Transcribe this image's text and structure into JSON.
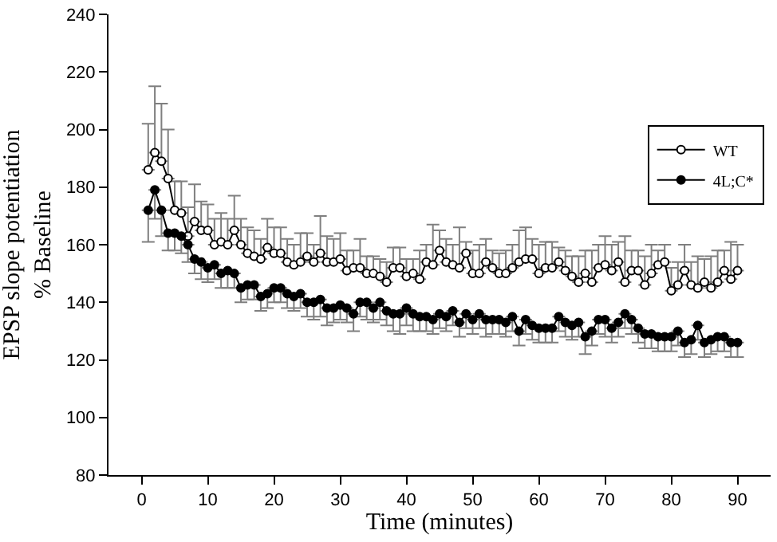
{
  "chart_data": {
    "type": "line",
    "xlabel": "Time (minutes)",
    "ylabel": "EPSP slope potentiation\n% Baseline",
    "xlim": [
      -5,
      95
    ],
    "ylim": [
      80,
      240
    ],
    "xticks": [
      0,
      10,
      20,
      30,
      40,
      50,
      60,
      70,
      80,
      90
    ],
    "yticks": [
      80,
      100,
      120,
      140,
      160,
      180,
      200,
      220,
      240
    ],
    "legend": "top right",
    "marker": "circle",
    "line_style": "solid",
    "x": [
      1,
      2,
      3,
      4,
      5,
      6,
      7,
      8,
      9,
      10,
      11,
      12,
      13,
      14,
      15,
      16,
      17,
      18,
      19,
      20,
      21,
      22,
      23,
      24,
      25,
      26,
      27,
      28,
      29,
      30,
      31,
      32,
      33,
      34,
      35,
      36,
      37,
      38,
      39,
      40,
      41,
      42,
      43,
      44,
      45,
      46,
      47,
      48,
      49,
      50,
      51,
      52,
      53,
      54,
      55,
      56,
      57,
      58,
      59,
      60,
      61,
      62,
      63,
      64,
      65,
      66,
      67,
      68,
      69,
      70,
      71,
      72,
      73,
      74,
      75,
      76,
      77,
      78,
      79,
      80,
      81,
      82,
      83,
      84,
      85,
      86,
      87,
      88,
      89,
      90
    ],
    "series": [
      {
        "name": "WT",
        "color": "#ffffff",
        "values": [
          186,
          192,
          189,
          183,
          172,
          171,
          163,
          168,
          165,
          165,
          160,
          161,
          160,
          165,
          160,
          157,
          156,
          155,
          159,
          157,
          157,
          154,
          153,
          154,
          156,
          154,
          157,
          154,
          154,
          155,
          151,
          152,
          152,
          150,
          150,
          149,
          147,
          152,
          152,
          149,
          150,
          148,
          154,
          153,
          158,
          154,
          153,
          152,
          157,
          150,
          150,
          154,
          152,
          150,
          150,
          152,
          154,
          155,
          155,
          150,
          152,
          152,
          154,
          151,
          149,
          147,
          150,
          147,
          152,
          153,
          151,
          154,
          147,
          151,
          151,
          146,
          150,
          153,
          154,
          144,
          146,
          151,
          146,
          145,
          147,
          145,
          147,
          151,
          148,
          151
        ],
        "errors": [
          [
            186,
            202
          ],
          [
            192,
            215
          ],
          [
            189,
            209
          ],
          [
            183,
            200
          ],
          [
            172,
            182
          ],
          [
            171,
            182
          ],
          [
            163,
            173
          ],
          [
            168,
            181
          ],
          [
            165,
            175
          ],
          [
            165,
            174
          ],
          [
            160,
            169
          ],
          [
            161,
            171
          ],
          [
            160,
            169
          ],
          [
            165,
            177
          ],
          [
            160,
            169
          ],
          [
            157,
            166
          ],
          [
            156,
            165
          ],
          [
            155,
            162
          ],
          [
            159,
            169
          ],
          [
            157,
            166
          ],
          [
            157,
            166
          ],
          [
            154,
            162
          ],
          [
            153,
            160
          ],
          [
            154,
            164
          ],
          [
            156,
            164
          ],
          [
            154,
            160
          ],
          [
            157,
            170
          ],
          [
            154,
            163
          ],
          [
            154,
            162
          ],
          [
            155,
            164
          ],
          [
            151,
            158
          ],
          [
            152,
            158
          ],
          [
            152,
            162
          ],
          [
            150,
            156
          ],
          [
            150,
            156
          ],
          [
            149,
            155
          ],
          [
            147,
            154
          ],
          [
            152,
            159
          ],
          [
            152,
            159
          ],
          [
            149,
            155
          ],
          [
            150,
            155
          ],
          [
            148,
            158
          ],
          [
            154,
            160
          ],
          [
            153,
            167
          ],
          [
            158,
            165
          ],
          [
            154,
            162
          ],
          [
            153,
            160
          ],
          [
            152,
            166
          ],
          [
            157,
            161
          ],
          [
            150,
            158
          ],
          [
            150,
            160
          ],
          [
            154,
            162
          ],
          [
            152,
            158
          ],
          [
            150,
            157
          ],
          [
            150,
            158
          ],
          [
            152,
            160
          ],
          [
            154,
            165
          ],
          [
            155,
            166
          ],
          [
            155,
            162
          ],
          [
            150,
            160
          ],
          [
            152,
            161
          ],
          [
            152,
            161
          ],
          [
            154,
            159
          ],
          [
            151,
            158
          ],
          [
            149,
            156
          ],
          [
            147,
            156
          ],
          [
            150,
            158
          ],
          [
            147,
            158
          ],
          [
            152,
            160
          ],
          [
            153,
            163
          ],
          [
            151,
            160
          ],
          [
            154,
            161
          ],
          [
            147,
            163
          ],
          [
            151,
            158
          ],
          [
            151,
            158
          ],
          [
            146,
            156
          ],
          [
            150,
            160
          ],
          [
            153,
            158
          ],
          [
            154,
            160
          ],
          [
            144,
            152
          ],
          [
            146,
            154
          ],
          [
            151,
            160
          ],
          [
            146,
            154
          ],
          [
            145,
            156
          ],
          [
            147,
            155
          ],
          [
            145,
            156
          ],
          [
            147,
            158
          ],
          [
            151,
            158
          ],
          [
            148,
            161
          ],
          [
            151,
            160
          ]
        ]
      },
      {
        "name": "4L;C*",
        "color": "#000000",
        "values": [
          172,
          179,
          172,
          164,
          164,
          163,
          160,
          155,
          154,
          152,
          153,
          150,
          151,
          150,
          145,
          146,
          146,
          142,
          143,
          145,
          145,
          143,
          142,
          143,
          140,
          140,
          141,
          138,
          138,
          139,
          138,
          136,
          140,
          140,
          138,
          140,
          137,
          136,
          136,
          138,
          136,
          135,
          135,
          134,
          136,
          135,
          137,
          133,
          136,
          134,
          136,
          134,
          134,
          134,
          133,
          135,
          130,
          134,
          132,
          131,
          131,
          131,
          135,
          133,
          132,
          133,
          128,
          130,
          134,
          134,
          131,
          133,
          136,
          134,
          131,
          129,
          129,
          128,
          128,
          128,
          130,
          126,
          127,
          132,
          126,
          127,
          128,
          128,
          126,
          126
        ],
        "errors": [
          [
            161,
            172
          ],
          [
            169,
            179
          ],
          [
            163,
            172
          ],
          [
            158,
            164
          ],
          [
            158,
            164
          ],
          [
            157,
            163
          ],
          [
            154,
            160
          ],
          [
            150,
            155
          ],
          [
            148,
            154
          ],
          [
            147,
            152
          ],
          [
            148,
            153
          ],
          [
            145,
            150
          ],
          [
            145,
            151
          ],
          [
            145,
            150
          ],
          [
            140,
            145
          ],
          [
            141,
            146
          ],
          [
            141,
            146
          ],
          [
            137,
            142
          ],
          [
            138,
            143
          ],
          [
            140,
            145
          ],
          [
            140,
            145
          ],
          [
            138,
            143
          ],
          [
            137,
            142
          ],
          [
            138,
            143
          ],
          [
            135,
            140
          ],
          [
            134,
            140
          ],
          [
            135,
            141
          ],
          [
            132,
            138
          ],
          [
            133,
            138
          ],
          [
            134,
            139
          ],
          [
            133,
            138
          ],
          [
            130,
            136
          ],
          [
            135,
            140
          ],
          [
            134,
            140
          ],
          [
            133,
            138
          ],
          [
            134,
            140
          ],
          [
            132,
            137
          ],
          [
            130,
            136
          ],
          [
            129,
            136
          ],
          [
            132,
            138
          ],
          [
            130,
            136
          ],
          [
            130,
            135
          ],
          [
            130,
            135
          ],
          [
            129,
            134
          ],
          [
            131,
            136
          ],
          [
            130,
            135
          ],
          [
            132,
            137
          ],
          [
            128,
            133
          ],
          [
            131,
            136
          ],
          [
            129,
            134
          ],
          [
            131,
            136
          ],
          [
            128,
            134
          ],
          [
            129,
            134
          ],
          [
            129,
            134
          ],
          [
            128,
            133
          ],
          [
            130,
            135
          ],
          [
            125,
            130
          ],
          [
            129,
            134
          ],
          [
            127,
            132
          ],
          [
            126,
            131
          ],
          [
            126,
            131
          ],
          [
            126,
            131
          ],
          [
            130,
            135
          ],
          [
            128,
            133
          ],
          [
            127,
            132
          ],
          [
            128,
            133
          ],
          [
            122,
            128
          ],
          [
            125,
            130
          ],
          [
            129,
            134
          ],
          [
            128,
            134
          ],
          [
            126,
            131
          ],
          [
            128,
            133
          ],
          [
            131,
            136
          ],
          [
            129,
            134
          ],
          [
            126,
            131
          ],
          [
            124,
            129
          ],
          [
            124,
            129
          ],
          [
            123,
            128
          ],
          [
            123,
            128
          ],
          [
            123,
            128
          ],
          [
            125,
            130
          ],
          [
            121,
            126
          ],
          [
            122,
            127
          ],
          [
            127,
            132
          ],
          [
            121,
            126
          ],
          [
            122,
            127
          ],
          [
            123,
            128
          ],
          [
            123,
            128
          ],
          [
            121,
            126
          ],
          [
            121,
            126
          ]
        ]
      }
    ]
  }
}
